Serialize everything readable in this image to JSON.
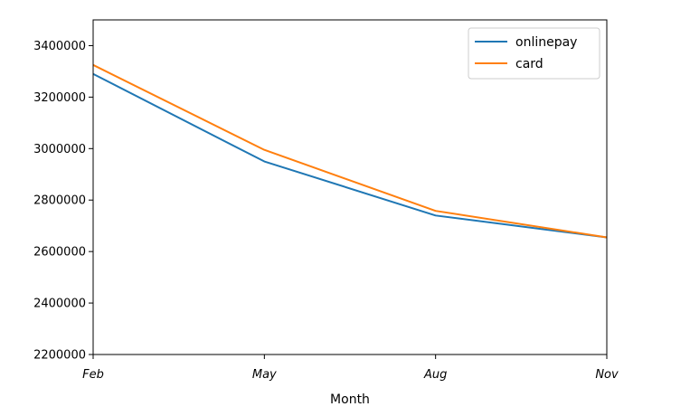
{
  "chart_data": {
    "type": "line",
    "title": "",
    "xlabel": "Month",
    "ylabel": "",
    "categories": [
      "Feb",
      "May",
      "Aug",
      "Nov"
    ],
    "series": [
      {
        "name": "onlinepay",
        "color": "#1f77b4",
        "values": [
          3290000,
          2950000,
          2740000,
          2655000
        ]
      },
      {
        "name": "card",
        "color": "#ff7f0e",
        "values": [
          3325000,
          2995000,
          2758000,
          2655000
        ]
      }
    ],
    "ylim": [
      2200000,
      3500000
    ],
    "yticks": [
      2200000,
      2400000,
      2600000,
      2800000,
      3000000,
      3200000,
      3400000
    ],
    "ytick_labels": [
      "2200000",
      "2400000",
      "2600000",
      "2800000",
      "3000000",
      "3200000",
      "3400000"
    ],
    "grid": false,
    "legend_position": "top-right"
  }
}
